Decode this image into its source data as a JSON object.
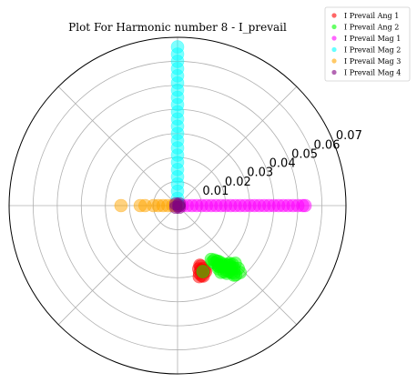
{
  "chart_data": {
    "type": "scatter",
    "subtype": "polar",
    "title": "Plot For Harmonic number 8 - I_prevail",
    "r_ticks": [
      0.01,
      0.02,
      0.03,
      0.04,
      0.05,
      0.06,
      0.07
    ],
    "r_tick_labels": [
      "0.01",
      "0.02",
      "0.03",
      "0.04",
      "0.05",
      "0.06",
      "0.07"
    ],
    "rlim": [
      0,
      0.07
    ],
    "theta_gridlines_deg": [
      0,
      45,
      90,
      135,
      180,
      225,
      270,
      315
    ],
    "theta_zero_location": "right",
    "theta_direction": "counterclockwise",
    "grid": true,
    "legend_position": "top-right",
    "series": [
      {
        "name": "I Prevail Ang 1",
        "color": "#ff0000",
        "points": [
          {
            "theta": 290.5,
            "r": 0.0265
          },
          {
            "theta": 291,
            "r": 0.027
          },
          {
            "theta": 290,
            "r": 0.0285
          },
          {
            "theta": 290.5,
            "r": 0.0293
          },
          {
            "theta": 292,
            "r": 0.0282
          },
          {
            "theta": 292.5,
            "r": 0.0291
          },
          {
            "theta": 293,
            "r": 0.0298
          },
          {
            "theta": 291.5,
            "r": 0.0296
          },
          {
            "theta": 289,
            "r": 0.0308
          },
          {
            "theta": 288.5,
            "r": 0.0278
          },
          {
            "theta": 288,
            "r": 0.0296
          },
          {
            "theta": 287,
            "r": 0.0309
          },
          {
            "theta": 290,
            "r": 0.0312
          }
        ]
      },
      {
        "name": "I Prevail Ang 2",
        "color": "#00ff00",
        "points": [
          {
            "theta": 302,
            "r": 0.0264
          },
          {
            "theta": 302,
            "r": 0.0275
          },
          {
            "theta": 303,
            "r": 0.0284
          },
          {
            "theta": 304,
            "r": 0.0273
          },
          {
            "theta": 305,
            "r": 0.0284
          },
          {
            "theta": 306,
            "r": 0.0286
          },
          {
            "theta": 307,
            "r": 0.0297
          },
          {
            "theta": 306,
            "r": 0.0314
          },
          {
            "theta": 305,
            "r": 0.0302
          },
          {
            "theta": 304,
            "r": 0.0303
          },
          {
            "theta": 303,
            "r": 0.0313
          },
          {
            "theta": 307,
            "r": 0.0307
          },
          {
            "theta": 308,
            "r": 0.0324
          },
          {
            "theta": 309,
            "r": 0.0314
          },
          {
            "theta": 310,
            "r": 0.0325
          },
          {
            "theta": 311,
            "r": 0.0328
          },
          {
            "theta": 312,
            "r": 0.0323
          },
          {
            "theta": 311,
            "r": 0.0341
          },
          {
            "theta": 313,
            "r": 0.0333
          },
          {
            "theta": 315,
            "r": 0.0339
          },
          {
            "theta": 310,
            "r": 0.0346
          },
          {
            "theta": 308,
            "r": 0.0349
          },
          {
            "theta": 306,
            "r": 0.0348
          },
          {
            "theta": 305,
            "r": 0.0336
          },
          {
            "theta": 303,
            "r": 0.0331
          },
          {
            "theta": 309,
            "r": 0.0357
          },
          {
            "theta": 312,
            "r": 0.0351
          },
          {
            "theta": 314,
            "r": 0.0363
          },
          {
            "theta": 310,
            "r": 0.0366
          },
          {
            "theta": 307,
            "r": 0.0337
          },
          {
            "theta": 310,
            "r": 0.0376
          },
          {
            "theta": 313,
            "r": 0.0381
          },
          {
            "theta": 304,
            "r": 0.0305
          },
          {
            "theta": 309,
            "r": 0.0372
          },
          {
            "theta": 291,
            "r": 0.0294
          }
        ]
      },
      {
        "name": "I Prevail Mag 1",
        "color": "#ff00ff",
        "points": [
          {
            "theta": 0,
            "r": 0.0005
          },
          {
            "theta": 0,
            "r": 0.002
          },
          {
            "theta": 0,
            "r": 0.004
          },
          {
            "theta": 0,
            "r": 0.006
          },
          {
            "theta": 0,
            "r": 0.008
          },
          {
            "theta": 0,
            "r": 0.01
          },
          {
            "theta": 0,
            "r": 0.012
          },
          {
            "theta": 0,
            "r": 0.014
          },
          {
            "theta": 0,
            "r": 0.016
          },
          {
            "theta": 0,
            "r": 0.018
          },
          {
            "theta": 0,
            "r": 0.02
          },
          {
            "theta": 0,
            "r": 0.022
          },
          {
            "theta": 0,
            "r": 0.024
          },
          {
            "theta": 0,
            "r": 0.026
          },
          {
            "theta": 0,
            "r": 0.028
          },
          {
            "theta": 0,
            "r": 0.03
          },
          {
            "theta": 0,
            "r": 0.032
          },
          {
            "theta": 0,
            "r": 0.034
          },
          {
            "theta": 0,
            "r": 0.036
          },
          {
            "theta": 0,
            "r": 0.038
          },
          {
            "theta": 0,
            "r": 0.04
          },
          {
            "theta": 0,
            "r": 0.042
          },
          {
            "theta": 0,
            "r": 0.044
          },
          {
            "theta": 0,
            "r": 0.046
          },
          {
            "theta": 0,
            "r": 0.048
          },
          {
            "theta": 0,
            "r": 0.05
          },
          {
            "theta": 0,
            "r": 0.052
          },
          {
            "theta": 0,
            "r": 0.053
          }
        ]
      },
      {
        "name": "I Prevail Mag 2",
        "color": "#00ffff",
        "points": [
          {
            "theta": 90,
            "r": 0.0005
          },
          {
            "theta": 90,
            "r": 0.003
          },
          {
            "theta": 90,
            "r": 0.006
          },
          {
            "theta": 90,
            "r": 0.009
          },
          {
            "theta": 90,
            "r": 0.012
          },
          {
            "theta": 90,
            "r": 0.015
          },
          {
            "theta": 90,
            "r": 0.018
          },
          {
            "theta": 90,
            "r": 0.021
          },
          {
            "theta": 90,
            "r": 0.024
          },
          {
            "theta": 90,
            "r": 0.027
          },
          {
            "theta": 90,
            "r": 0.03
          },
          {
            "theta": 90,
            "r": 0.033
          },
          {
            "theta": 90,
            "r": 0.036
          },
          {
            "theta": 90,
            "r": 0.039
          },
          {
            "theta": 90,
            "r": 0.042
          },
          {
            "theta": 90,
            "r": 0.045
          },
          {
            "theta": 90,
            "r": 0.048
          },
          {
            "theta": 90,
            "r": 0.051
          },
          {
            "theta": 90,
            "r": 0.054
          },
          {
            "theta": 90,
            "r": 0.057
          },
          {
            "theta": 90,
            "r": 0.06
          },
          {
            "theta": 90,
            "r": 0.063
          },
          {
            "theta": 90,
            "r": 0.066
          }
        ]
      },
      {
        "name": "I Prevail Mag 3",
        "color": "#ffa500",
        "points": [
          {
            "theta": 180,
            "r": 0.0005
          },
          {
            "theta": 180,
            "r": 0.002
          },
          {
            "theta": 180,
            "r": 0.004
          },
          {
            "theta": 180,
            "r": 0.006
          },
          {
            "theta": 180,
            "r": 0.008
          },
          {
            "theta": 180,
            "r": 0.01
          },
          {
            "theta": 180,
            "r": 0.0135
          },
          {
            "theta": 180,
            "r": 0.0155
          },
          {
            "theta": 180,
            "r": 0.0235
          }
        ]
      },
      {
        "name": "I Prevail Mag 4",
        "color": "#800080",
        "points": [
          {
            "theta": 0,
            "r": 0.0005
          },
          {
            "theta": 45,
            "r": 0.001
          },
          {
            "theta": 135,
            "r": 0.001
          },
          {
            "theta": 225,
            "r": 0.001
          },
          {
            "theta": 315,
            "r": 0.001
          }
        ]
      }
    ]
  }
}
